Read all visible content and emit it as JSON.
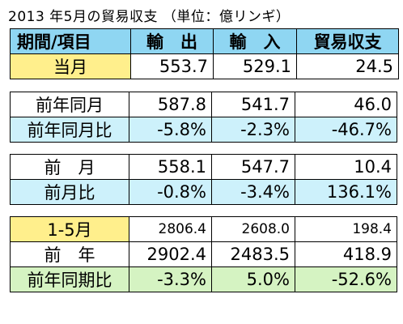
{
  "title": "2013 年5月の貿易収支 （単位：億リンギ）",
  "header": {
    "c1": "期間/項目",
    "c2": "輸　出",
    "c3": "輸　入",
    "c4": "貿易収支"
  },
  "groups": [
    [
      {
        "label": "当月",
        "exp": "553.7",
        "imp": "529.1",
        "bal": "24.5",
        "bg": "#ffef8c"
      }
    ],
    [
      {
        "label": "前年同月",
        "exp": "587.8",
        "imp": "541.7",
        "bal": "46.0",
        "bg": "#ffffff"
      },
      {
        "label": "前年同月比",
        "exp": "-5.8%",
        "imp": "-2.3%",
        "bal": "-46.7%",
        "bg": "#cdf1fb"
      }
    ],
    [
      {
        "label": "前　月",
        "exp": "558.1",
        "imp": "547.7",
        "bal": "10.4",
        "bg": "#ffffff"
      },
      {
        "label": "前月比",
        "exp": "-0.8%",
        "imp": "-3.4%",
        "bal": "136.1%",
        "bg": "#cdf1fb"
      }
    ],
    [
      {
        "label": "1-5月",
        "exp": "2806.4",
        "imp": "2608.0",
        "bal": "198.4",
        "bg": "#ffef8c"
      },
      {
        "label": "前　年",
        "exp": "2902.4",
        "imp": "2483.5",
        "bal": "418.9",
        "bg": "#ffffff"
      },
      {
        "label": "前年同期比",
        "exp": "-3.3%",
        "imp": "5.0%",
        "bal": "-52.6%",
        "bg": "#d5f3c2"
      }
    ]
  ]
}
